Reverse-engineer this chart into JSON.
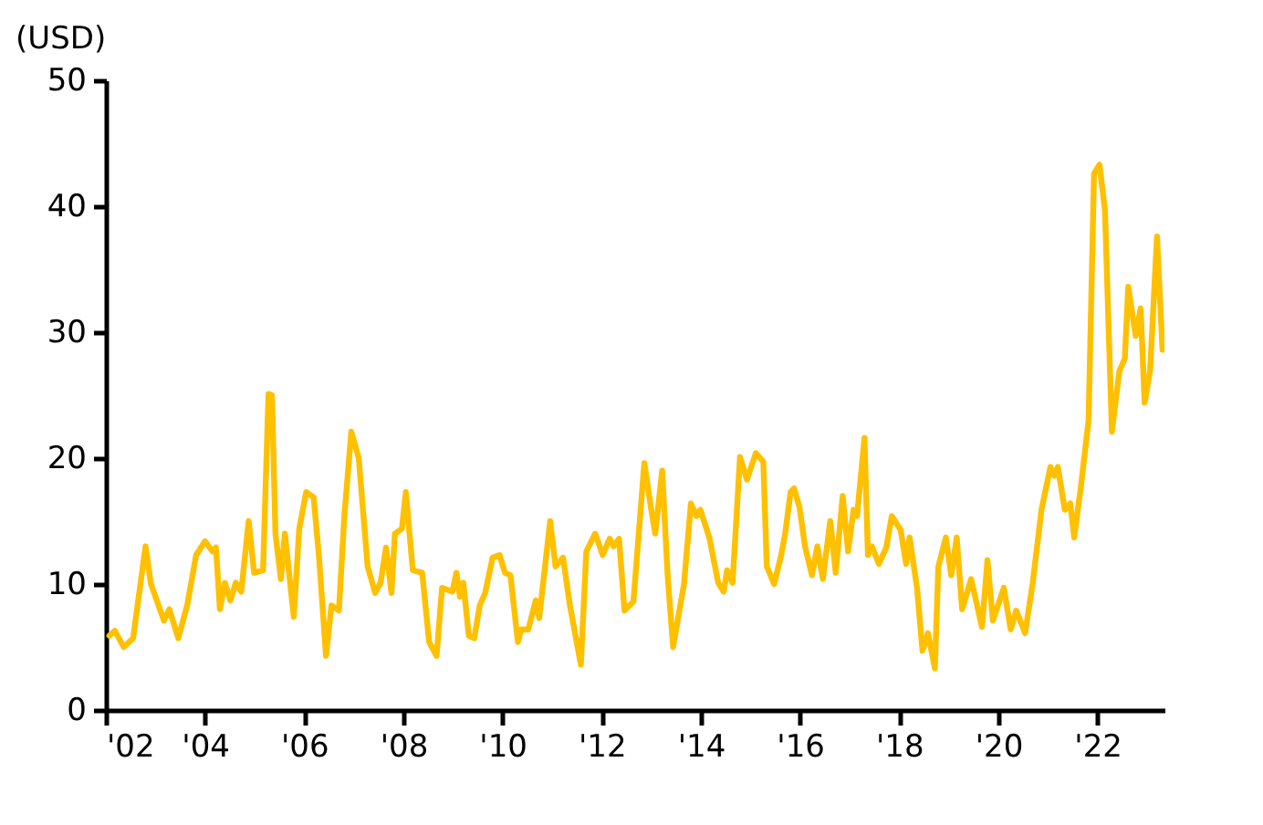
{
  "chart_data": {
    "type": "line",
    "ylabel": "(USD)",
    "xlim": [
      2002,
      2023.35
    ],
    "ylim": [
      0,
      50
    ],
    "xticks": [
      {
        "value": 2002,
        "label": "'02"
      },
      {
        "value": 2004,
        "label": "'04"
      },
      {
        "value": 2006,
        "label": "'06"
      },
      {
        "value": 2008,
        "label": "'08"
      },
      {
        "value": 2010,
        "label": "'10"
      },
      {
        "value": 2012,
        "label": "'12"
      },
      {
        "value": 2014,
        "label": "'14"
      },
      {
        "value": 2016,
        "label": "'16"
      },
      {
        "value": 2018,
        "label": "'18"
      },
      {
        "value": 2020,
        "label": "'20"
      },
      {
        "value": 2022,
        "label": "'22"
      }
    ],
    "yticks": [
      0,
      10,
      20,
      30,
      40,
      50
    ],
    "grid": false,
    "marker": "none",
    "line_style": "solid",
    "series": [
      {
        "color": "#ffc000",
        "x": [
          2002.07,
          2002.18,
          2002.36,
          2002.55,
          2002.8,
          2002.91,
          2003.17,
          2003.28,
          2003.46,
          2003.64,
          2003.82,
          2004.0,
          2004.15,
          2004.22,
          2004.3,
          2004.4,
          2004.51,
          2004.62,
          2004.73,
          2004.88,
          2004.99,
          2005.17,
          2005.28,
          2005.35,
          2005.42,
          2005.53,
          2005.61,
          2005.79,
          2005.9,
          2006.04,
          2006.19,
          2006.3,
          2006.44,
          2006.55,
          2006.7,
          2006.81,
          2006.95,
          2007.1,
          2007.28,
          2007.43,
          2007.54,
          2007.65,
          2007.76,
          2007.83,
          2007.97,
          2008.05,
          2008.19,
          2008.38,
          2008.52,
          2008.67,
          2008.78,
          2008.99,
          2009.07,
          2009.14,
          2009.21,
          2009.32,
          2009.43,
          2009.54,
          2009.65,
          2009.8,
          2009.94,
          2010.05,
          2010.16,
          2010.31,
          2010.38,
          2010.52,
          2010.67,
          2010.74,
          2010.96,
          2011.07,
          2011.22,
          2011.36,
          2011.58,
          2011.69,
          2011.87,
          2012.02,
          2012.16,
          2012.24,
          2012.35,
          2012.46,
          2012.64,
          2012.86,
          2013.0,
          2013.08,
          2013.22,
          2013.33,
          2013.44,
          2013.66,
          2013.8,
          2013.91,
          2013.99,
          2014.17,
          2014.35,
          2014.46,
          2014.53,
          2014.64,
          2014.79,
          2014.93,
          2015.11,
          2015.26,
          2015.33,
          2015.48,
          2015.62,
          2015.7,
          2015.81,
          2015.88,
          2015.99,
          2016.1,
          2016.24,
          2016.35,
          2016.46,
          2016.61,
          2016.72,
          2016.86,
          2016.97,
          2017.08,
          2017.15,
          2017.3,
          2017.37,
          2017.45,
          2017.59,
          2017.74,
          2017.85,
          2018.03,
          2018.14,
          2018.21,
          2018.36,
          2018.47,
          2018.58,
          2018.72,
          2018.79,
          2018.94,
          2019.05,
          2019.16,
          2019.27,
          2019.45,
          2019.67,
          2019.78,
          2019.89,
          2020.11,
          2020.25,
          2020.36,
          2020.54,
          2020.69,
          2020.87,
          2021.05,
          2021.13,
          2021.2,
          2021.34,
          2021.45,
          2021.53,
          2021.67,
          2021.82,
          2021.93,
          2022.04,
          2022.15,
          2022.29,
          2022.44,
          2022.55,
          2022.62,
          2022.77,
          2022.87,
          2022.95,
          2023.06,
          2023.2,
          2023.31
        ],
        "values": [
          5.9,
          6.3,
          5.0,
          5.7,
          13.0,
          10.0,
          7.1,
          8.0,
          5.7,
          8.3,
          12.3,
          13.4,
          12.6,
          12.9,
          8.0,
          10.1,
          8.7,
          10.1,
          9.4,
          15.0,
          10.9,
          11.1,
          25.1,
          25.0,
          14.0,
          10.4,
          14.0,
          7.4,
          14.4,
          17.3,
          16.9,
          12.1,
          4.3,
          8.3,
          7.9,
          15.4,
          22.1,
          20.0,
          11.4,
          9.3,
          10.1,
          12.9,
          9.3,
          14.0,
          14.4,
          17.3,
          11.1,
          10.9,
          5.4,
          4.3,
          9.7,
          9.4,
          10.9,
          9.0,
          10.1,
          5.9,
          5.7,
          8.3,
          9.3,
          12.1,
          12.3,
          10.9,
          10.7,
          5.4,
          6.4,
          6.4,
          8.7,
          7.3,
          15.0,
          11.4,
          12.1,
          8.3,
          3.6,
          12.6,
          14.0,
          12.3,
          13.6,
          13.0,
          13.6,
          7.9,
          8.6,
          19.6,
          15.9,
          14.0,
          19.0,
          10.7,
          5.0,
          10.0,
          16.4,
          15.4,
          15.9,
          13.7,
          10.1,
          9.4,
          11.1,
          10.1,
          20.1,
          18.3,
          20.4,
          19.7,
          11.4,
          10.0,
          12.3,
          14.0,
          17.3,
          17.6,
          16.1,
          13.0,
          10.7,
          13.0,
          10.4,
          15.0,
          10.9,
          17.0,
          12.6,
          15.9,
          15.4,
          21.6,
          12.3,
          13.0,
          11.6,
          12.9,
          15.4,
          14.3,
          11.6,
          13.7,
          9.7,
          4.7,
          6.1,
          3.3,
          11.4,
          13.7,
          10.7,
          13.7,
          8.0,
          10.4,
          6.6,
          11.9,
          7.1,
          9.7,
          6.4,
          7.9,
          6.1,
          10.0,
          15.9,
          19.3,
          18.6,
          19.3,
          15.9,
          16.4,
          13.7,
          17.9,
          23.0,
          42.6,
          43.3,
          39.7,
          22.1,
          26.9,
          27.9,
          33.6,
          29.7,
          31.9,
          24.4,
          26.9,
          37.6,
          28.6
        ]
      }
    ]
  }
}
